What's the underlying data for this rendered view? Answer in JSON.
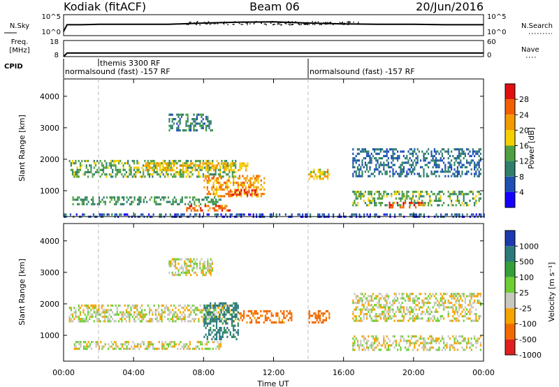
{
  "header": {
    "radar": "Kodiak (fitACF)",
    "beam": "Beam 06",
    "date": "20/Jun/2016"
  },
  "strips": {
    "nsky_label": "N.Sky",
    "nsky_ticks": [
      "10^5",
      "10^0"
    ],
    "nsearch_label": "N.Search",
    "nsearch_ticks": [
      "10^5",
      "10^0"
    ],
    "freq_label": "Freq.",
    "freq_unit": "[MHz]",
    "freq_ticks": [
      "18",
      "8"
    ],
    "nave_label": "Nave",
    "nave_ticks": [
      "60",
      "0"
    ],
    "cpid_label": "CPID",
    "cpid_segments": [
      {
        "label": "normalsound (fast) -157 RF",
        "start_h": 0,
        "end_h": 14
      },
      {
        "label": "themis 3300 RF",
        "start_h": 2,
        "end_h": 2
      },
      {
        "label": "normalsound (fast) -157 RF",
        "start_h": 14,
        "end_h": 24
      }
    ]
  },
  "axes": {
    "xlabel": "Time UT",
    "ylabel": "Slant Range [km]",
    "x_ticks": [
      "00:00",
      "04:00",
      "08:00",
      "12:00",
      "16:00",
      "20:00",
      "00:00"
    ],
    "y_ticks": [
      "1000",
      "2000",
      "3000",
      "4000"
    ]
  },
  "colorbars": {
    "power": {
      "label": "Power [dB]",
      "ticks": [
        "4",
        "8",
        "12",
        "16",
        "20",
        "24",
        "28"
      ],
      "colors": [
        "#1400ff",
        "#1e50b4",
        "#2f7f6c",
        "#4ea043",
        "#f5d000",
        "#f39a00",
        "#f06000",
        "#e01010"
      ]
    },
    "velocity": {
      "label": "Velocity [m s⁻¹]",
      "ticks": [
        "1000",
        "500",
        "100",
        "25",
        "-25",
        "-100",
        "-500",
        "-1000"
      ],
      "colors": [
        "#1c39b0",
        "#2d7a7a",
        "#35a03a",
        "#6fcf32",
        "#c8c8c0",
        "#f5a400",
        "#f26b00",
        "#e02020"
      ]
    }
  },
  "chart_data": [
    {
      "type": "line",
      "title": "N.Sky / N.Search",
      "x": [
        0,
        0.2,
        1,
        2,
        4,
        6,
        8,
        10,
        12,
        14,
        16,
        18,
        20,
        22,
        24
      ],
      "series": [
        {
          "name": "N.Sky",
          "values": [
            1.0,
            2.6,
            2.6,
            2.7,
            2.7,
            2.7,
            3.0,
            3.2,
            3.3,
            3.0,
            2.8,
            2.7,
            2.7,
            2.6,
            2.6
          ]
        }
      ],
      "ylim": [
        0,
        5
      ]
    },
    {
      "type": "line",
      "title": "Freq.",
      "x": [
        0,
        0.2,
        24
      ],
      "series": [
        {
          "name": "Freq.",
          "values": [
            8,
            10.2,
            10.2
          ]
        }
      ],
      "ylim": [
        8,
        18
      ]
    },
    {
      "type": "heatmap",
      "title": "Power [dB]",
      "xlabel": "Time UT",
      "ylabel": "Slant Range [km]",
      "xlim": [
        0,
        24
      ],
      "ylim": [
        180,
        4550
      ],
      "echo_bands": [
        {
          "t0": 0.3,
          "t1": 9.8,
          "r0": 1480,
          "r1": 1980,
          "power": 14
        },
        {
          "t0": 4.5,
          "t1": 10.5,
          "r0": 1650,
          "r1": 1900,
          "power": 20
        },
        {
          "t0": 8.0,
          "t1": 11.5,
          "r0": 800,
          "r1": 1500,
          "power": 22
        },
        {
          "t0": 9.5,
          "t1": 11.0,
          "r0": 850,
          "r1": 1050,
          "power": 28
        },
        {
          "t0": 0.5,
          "t1": 9.0,
          "r0": 600,
          "r1": 820,
          "power": 12
        },
        {
          "t0": 7.0,
          "t1": 9.5,
          "r0": 350,
          "r1": 550,
          "power": 26
        },
        {
          "t0": 6.0,
          "t1": 8.5,
          "r0": 2900,
          "r1": 3450,
          "power": 10
        },
        {
          "t0": 14.0,
          "t1": 15.2,
          "r0": 1400,
          "r1": 1700,
          "power": 18
        },
        {
          "t0": 16.5,
          "t1": 23.8,
          "r0": 550,
          "r1": 1000,
          "power": 14
        },
        {
          "t0": 18.5,
          "t1": 20.5,
          "r0": 450,
          "r1": 650,
          "power": 26
        },
        {
          "t0": 16.5,
          "t1": 23.8,
          "r0": 1450,
          "r1": 2350,
          "power": 8
        },
        {
          "t0": 0.0,
          "t1": 24.0,
          "r0": 180,
          "r1": 280,
          "power": 6
        }
      ]
    },
    {
      "type": "heatmap",
      "title": "Velocity [m s⁻¹]",
      "xlabel": "Time UT",
      "ylabel": "Slant Range [km]",
      "xlim": [
        0,
        24
      ],
      "ylim": [
        180,
        4550
      ],
      "echo_bands": [
        {
          "t0": 0.3,
          "t1": 9.8,
          "r0": 1480,
          "r1": 1980,
          "velocity": 0
        },
        {
          "t0": 8.0,
          "t1": 10.0,
          "r0": 900,
          "r1": 2050,
          "velocity": 150
        },
        {
          "t0": 10.0,
          "t1": 13.0,
          "r0": 1400,
          "r1": 1800,
          "velocity": -150
        },
        {
          "t0": 0.5,
          "t1": 9.0,
          "r0": 600,
          "r1": 820,
          "velocity": 0
        },
        {
          "t0": 6.0,
          "t1": 8.5,
          "r0": 2900,
          "r1": 3450,
          "velocity": 0
        },
        {
          "t0": 14.0,
          "t1": 15.2,
          "r0": 1400,
          "r1": 1800,
          "velocity": -150
        },
        {
          "t0": 16.5,
          "t1": 23.8,
          "r0": 550,
          "r1": 1000,
          "velocity": 0
        },
        {
          "t0": 16.5,
          "t1": 23.8,
          "r0": 1450,
          "r1": 2350,
          "velocity": 0
        }
      ]
    }
  ]
}
